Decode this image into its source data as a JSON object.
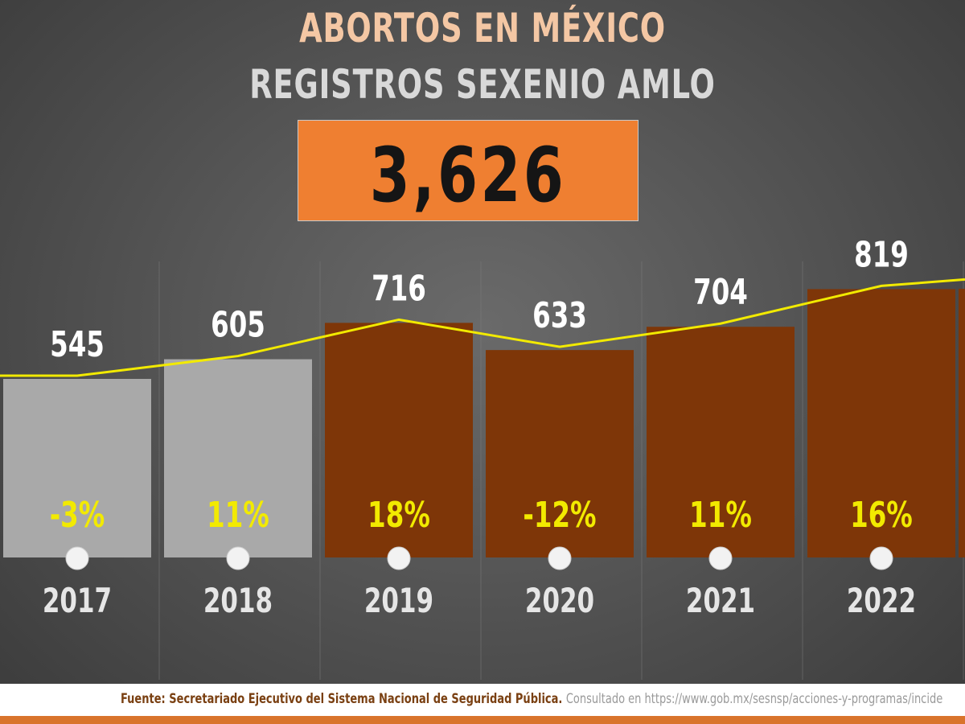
{
  "title": "ABORTOS EN MÉXICO",
  "subtitle": "REGISTROS SEXENIO AMLO",
  "total": "3,626",
  "footer": {
    "source_label": "Fuente: Secretariado Ejecutivo del Sistema Nacional de Seguridad Pública.",
    "consulted_text": "Consultado en https://www.gob.mx/sesnsp/acciones-y-programas/incide"
  },
  "colors": {
    "highlight_bar": "#7e3608",
    "previous_bar": "#a9a9a9",
    "trend_line": "#f2ea00",
    "percent_text": "#f2ea00",
    "value_text": "#ffffff",
    "total_box": "#ef7f31"
  },
  "chart_data": {
    "type": "bar",
    "categories": [
      "2017",
      "2018",
      "2019",
      "2020",
      "2021",
      "2022"
    ],
    "values": [
      545,
      605,
      716,
      633,
      704,
      819
    ],
    "value_labels": [
      "545",
      "605",
      "716",
      "633",
      "704",
      "819"
    ],
    "percent_change": [
      "-3%",
      "11%",
      "18%",
      "-12%",
      "11%",
      "16%"
    ],
    "highlighted": [
      false,
      false,
      true,
      true,
      true,
      true
    ],
    "trend_line": true,
    "grid": false,
    "legend": "none"
  }
}
